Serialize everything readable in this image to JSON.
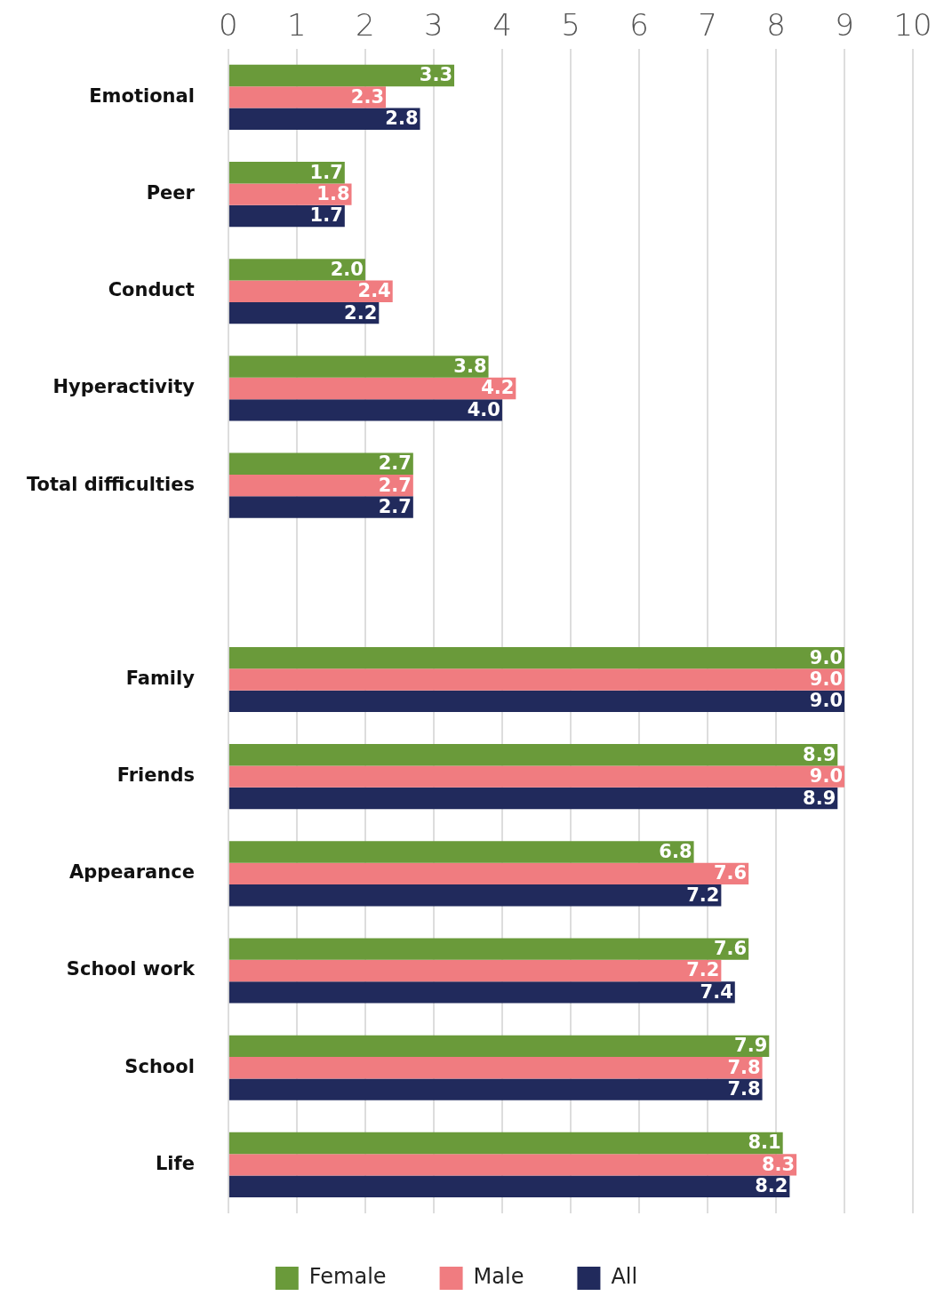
{
  "chart_data": {
    "type": "bar",
    "orientation": "horizontal",
    "categories": [
      "Emotional",
      "Peer",
      "Conduct",
      "Hyperactivity",
      "Total difficulties",
      null,
      "Family",
      "Friends",
      "Appearance",
      "School work",
      "School",
      "Life"
    ],
    "series": [
      {
        "name": "Female",
        "color": "#6a9a3a",
        "values": [
          3.3,
          1.7,
          2.0,
          3.8,
          2.7,
          null,
          9.0,
          8.9,
          6.8,
          7.6,
          7.9,
          8.1
        ],
        "value_labels": [
          "3.3",
          "1.7",
          "2.0",
          "3.8",
          "2.7",
          null,
          "9.0",
          "8.9",
          "6.8",
          "7.6",
          "7.9",
          "8.1"
        ]
      },
      {
        "name": "Male",
        "color": "#f07c80",
        "values": [
          2.3,
          1.8,
          2.4,
          4.2,
          2.7,
          null,
          9.0,
          9.0,
          7.6,
          7.2,
          7.8,
          8.3
        ],
        "value_labels": [
          "2.3",
          "1.8",
          "2.4",
          "4.2",
          "2.7",
          null,
          "9.0",
          "9.0",
          "7.6",
          "7.2",
          "7.8",
          "8.3"
        ]
      },
      {
        "name": "All",
        "color": "#212a5c",
        "values": [
          2.8,
          1.7,
          2.2,
          4.0,
          2.7,
          null,
          9.0,
          8.9,
          7.2,
          7.4,
          7.8,
          8.2
        ],
        "value_labels": [
          "2.8",
          "1.7",
          "2.2",
          "4.0",
          "2.7",
          null,
          "9.0",
          "8.9",
          "7.2",
          "7.4",
          "7.8",
          "8.2"
        ]
      }
    ],
    "xlim": [
      0,
      10
    ],
    "xticks": [
      0,
      1,
      2,
      3,
      4,
      5,
      6,
      7,
      8,
      9,
      10
    ],
    "grid": "x",
    "legend": "bottom"
  }
}
